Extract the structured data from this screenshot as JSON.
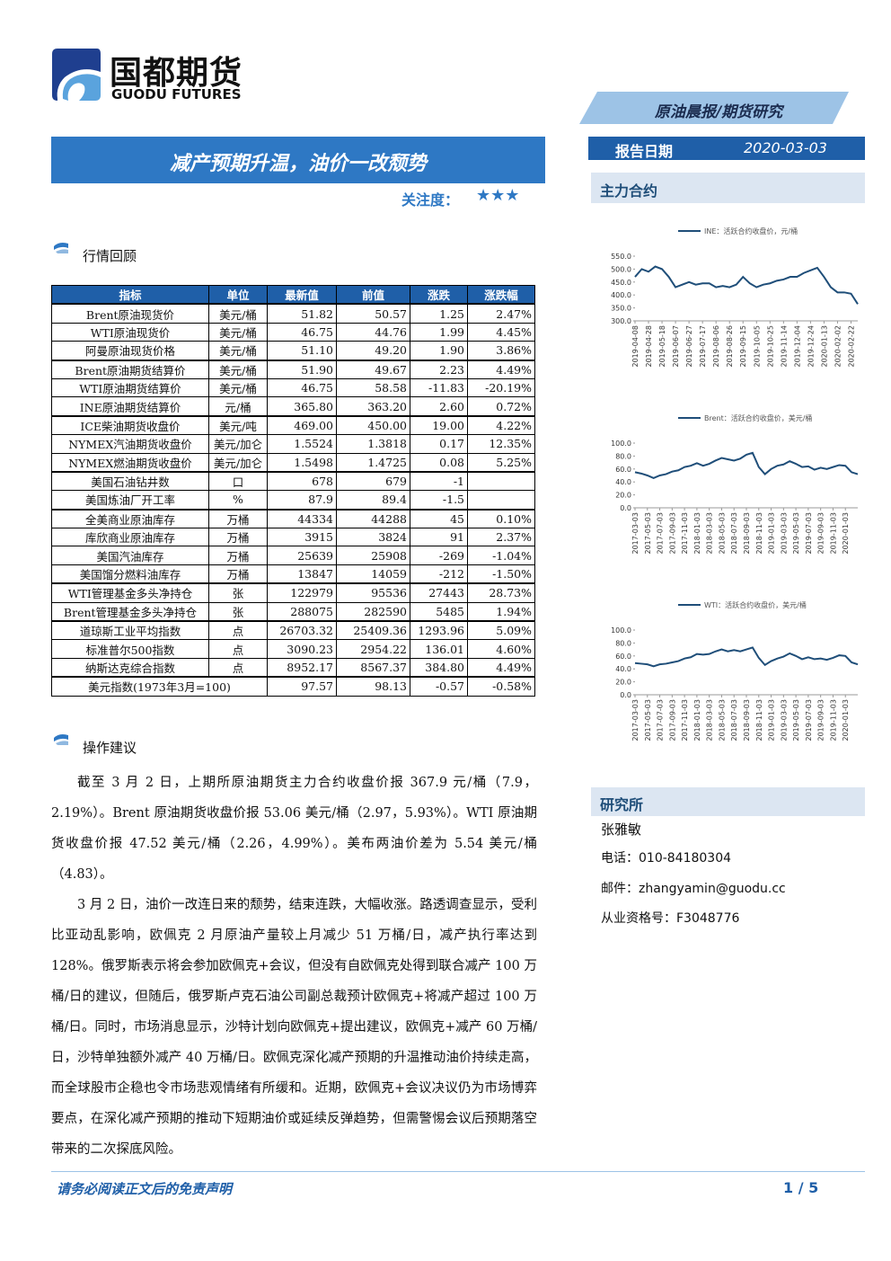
{
  "header": {
    "logo_cn": "国都期货",
    "logo_en": "GUODU FUTURES",
    "report_type": "原油晨报/期货研究",
    "date_label": "报告日期",
    "date": "2020-03-03",
    "title": "减产预期升温，油价一改颓势",
    "attention_label": "关注度：",
    "attention_stars": "★★★"
  },
  "section1": "行情回顾",
  "table": {
    "headers": [
      "指标",
      "单位",
      "最新值",
      "前值",
      "涨跌",
      "涨跌幅"
    ],
    "groups": [
      [
        [
          "Brent原油现货价",
          "美元/桶",
          "51.82",
          "50.57",
          "1.25",
          "2.47%"
        ],
        [
          "WTI原油现货价",
          "美元/桶",
          "46.75",
          "44.76",
          "1.99",
          "4.45%"
        ],
        [
          "阿曼原油现货价格",
          "美元/桶",
          "51.10",
          "49.20",
          "1.90",
          "3.86%"
        ]
      ],
      [
        [
          "Brent原油期货结算价",
          "美元/桶",
          "51.90",
          "49.67",
          "2.23",
          "4.49%"
        ],
        [
          "WTI原油期货结算价",
          "美元/桶",
          "46.75",
          "58.58",
          "-11.83",
          "-20.19%"
        ],
        [
          "INE原油期货结算价",
          "元/桶",
          "365.80",
          "363.20",
          "2.60",
          "0.72%"
        ]
      ],
      [
        [
          "ICE柴油期货收盘价",
          "美元/吨",
          "469.00",
          "450.00",
          "19.00",
          "4.22%"
        ],
        [
          "NYMEX汽油期货收盘价",
          "美元/加仑",
          "1.5524",
          "1.3818",
          "0.17",
          "12.35%"
        ],
        [
          "NYMEX燃油期货收盘价",
          "美元/加仑",
          "1.5498",
          "1.4725",
          "0.08",
          "5.25%"
        ]
      ],
      [
        [
          "美国石油钻井数",
          "口",
          "678",
          "679",
          "-1",
          null
        ],
        [
          "美国炼油厂开工率",
          "%",
          "87.9",
          "89.4",
          "-1.5",
          null
        ]
      ],
      [
        [
          "全美商业原油库存",
          "万桶",
          "44334",
          "44288",
          "45",
          "0.10%"
        ],
        [
          "库欣商业原油库存",
          "万桶",
          "3915",
          "3824",
          "91",
          "2.37%"
        ],
        [
          "美国汽油库存",
          "万桶",
          "25639",
          "25908",
          "-269",
          "-1.04%"
        ],
        [
          "美国馏分燃料油库存",
          "万桶",
          "13847",
          "14059",
          "-212",
          "-1.50%"
        ]
      ],
      [
        [
          "WTI管理基金多头净持仓",
          "张",
          "122979",
          "95536",
          "27443",
          "28.73%"
        ],
        [
          "Brent管理基金多头净持仓",
          "张",
          "288075",
          "282590",
          "5485",
          "1.94%"
        ]
      ],
      [
        [
          "道琼斯工业平均指数",
          "点",
          "26703.32",
          "25409.36",
          "1293.96",
          "5.09%"
        ],
        [
          "标准普尔500指数",
          "点",
          "3090.23",
          "2954.22",
          "136.01",
          "4.60%"
        ],
        [
          "纳斯达克综合指数",
          "点",
          "8952.17",
          "8567.37",
          "384.80",
          "4.49%"
        ]
      ],
      [
        [
          "美元指数(1973年3月=100)",
          "97.57",
          "98.13",
          "-0.57",
          "-0.58%"
        ]
      ]
    ]
  },
  "section2": "操作建议",
  "paragraphs": [
    "截至 3 月 2 日，上期所原油期货主力合约收盘价报 367.9 元/桶（7.9，2.19%）。Brent 原油期货收盘价报 53.06 美元/桶（2.97，5.93%）。WTI 原油期货收盘价报 47.52 美元/桶（2.26，4.99%）。美布两油价差为 5.54 美元/桶（4.83）。",
    "3 月 2 日，油价一改连日来的颓势，结束连跌，大幅收涨。路透调查显示，受利比亚动乱影响，欧佩克 2 月原油产量较上月减少 51 万桶/日，减产执行率达到 128%。俄罗斯表示将会参加欧佩克+会议，但没有自欧佩克处得到联合减产 100 万桶/日的建议，但随后，俄罗斯卢克石油公司副总裁预计欧佩克+将减产超过 100 万桶/日。同时，市场消息显示，沙特计划向欧佩克+提出建议，欧佩克+减产 60 万桶/日，沙特单独额外减产 40 万桶/日。欧佩克深化减产预期的升温推动油价持续走高，而全球股市企稳也令市场悲观情绪有所缓和。近期，欧佩克+会议决议仍为市场博弈要点，在深化减产预期的推动下短期油价或延续反弹趋势，但需警惕会议后预期落空带来的二次探底风险。"
  ],
  "sidebar": {
    "contracts": "主力合约",
    "institute": "研究所",
    "analyst": "张雅敏",
    "phone": "电话：010-84180304",
    "email": "邮件：zhangyamin@guodu.cc",
    "license": "从业资格号：F3048776"
  },
  "chart_data": [
    {
      "type": "line",
      "categories": [
        "2019-04-08",
        null,
        "2019-04-28",
        null,
        "2019-05-18",
        null,
        "2019-06-07",
        null,
        "2019-06-27",
        null,
        "2019-07-17",
        null,
        "2019-08-06",
        null,
        "2019-08-26",
        null,
        "2019-09-15",
        null,
        "2019-10-05",
        null,
        "2019-10-25",
        null,
        "2019-11-14",
        null,
        "2019-12-04",
        null,
        "2019-12-24",
        null,
        "2020-01-13",
        null,
        "2020-02-02",
        null,
        "2020-02-22",
        null
      ],
      "series": [
        {
          "name": "INE：活跃合约收盘价，元/桶",
          "color": "#1f4e79",
          "values": [
            470,
            500,
            490,
            510,
            500,
            470,
            430,
            440,
            450,
            440,
            445,
            445,
            430,
            435,
            430,
            440,
            470,
            445,
            430,
            440,
            445,
            455,
            460,
            470,
            470,
            485,
            495,
            505,
            470,
            430,
            410,
            410,
            405,
            365
          ]
        }
      ],
      "ylim": [
        300,
        550
      ],
      "yticks": [
        {
          "value": 300,
          "label": "300.0"
        },
        {
          "value": 350,
          "label": "350.0"
        },
        {
          "value": 400,
          "label": "400.0"
        },
        {
          "value": 450,
          "label": "450.0"
        },
        {
          "value": 500,
          "label": "500.0"
        },
        {
          "value": 550,
          "label": "550.0"
        }
      ]
    },
    {
      "type": "line",
      "categories": [
        "2017-03-03",
        null,
        "2017-05-03",
        null,
        "2017-07-03",
        null,
        "2017-09-03",
        null,
        "2017-11-03",
        null,
        "2018-01-03",
        null,
        "2018-03-03",
        null,
        "2018-05-03",
        null,
        "2018-07-03",
        null,
        "2018-09-03",
        null,
        "2018-11-03",
        null,
        "2019-01-03",
        null,
        "2019-03-03",
        null,
        "2019-05-03",
        null,
        "2019-07-03",
        null,
        "2019-09-03",
        null,
        "2019-11-03",
        null,
        "2020-01-03",
        null,
        null
      ],
      "series": [
        {
          "name": "Brent：活跃合约收盘价，美元/桶",
          "color": "#1f4e79",
          "values": [
            55,
            53,
            50,
            46,
            50,
            52,
            56,
            58,
            63,
            65,
            69,
            65,
            68,
            73,
            77,
            75,
            73,
            76,
            82,
            85,
            63,
            52,
            60,
            65,
            67,
            72,
            68,
            63,
            64,
            59,
            62,
            60,
            63,
            66,
            65,
            55,
            52
          ]
        }
      ],
      "ylim": [
        0,
        100
      ],
      "yticks": [
        {
          "value": 0,
          "label": "0.0"
        },
        {
          "value": 20,
          "label": "20.0"
        },
        {
          "value": 40,
          "label": "40.0"
        },
        {
          "value": 60,
          "label": "60.0"
        },
        {
          "value": 80,
          "label": "80.0"
        },
        {
          "value": 100,
          "label": "100.0"
        }
      ]
    },
    {
      "type": "line",
      "categories": [
        "2017-03-03",
        null,
        "2017-05-03",
        null,
        "2017-07-03",
        null,
        "2017-09-03",
        null,
        "2017-11-03",
        null,
        "2018-01-03",
        null,
        "2018-03-03",
        null,
        "2018-05-03",
        null,
        "2018-07-03",
        null,
        "2018-09-03",
        null,
        "2018-11-03",
        null,
        "2019-01-03",
        null,
        "2019-03-03",
        null,
        "2019-05-03",
        null,
        "2019-07-03",
        null,
        "2019-09-03",
        null,
        "2019-11-03",
        null,
        "2020-01-03",
        null,
        null
      ],
      "series": [
        {
          "name": "WTI：活跃合约收盘价，美元/桶",
          "color": "#1f4e79",
          "values": [
            49,
            48,
            47,
            44,
            47,
            48,
            50,
            52,
            56,
            58,
            63,
            62,
            63,
            67,
            70,
            67,
            69,
            67,
            70,
            73,
            57,
            46,
            52,
            56,
            59,
            64,
            60,
            55,
            58,
            55,
            56,
            54,
            57,
            61,
            60,
            50,
            47
          ]
        }
      ],
      "ylim": [
        0,
        100
      ],
      "yticks": [
        {
          "value": 0,
          "label": "0.0"
        },
        {
          "value": 20,
          "label": "20.0"
        },
        {
          "value": 40,
          "label": "40.0"
        },
        {
          "value": 60,
          "label": "60.0"
        },
        {
          "value": 80,
          "label": "80.0"
        },
        {
          "value": 100,
          "label": "100.0"
        }
      ]
    }
  ],
  "footer": {
    "disclaimer": "请务必阅读正文后的免责声明",
    "page": "1 / 5"
  }
}
